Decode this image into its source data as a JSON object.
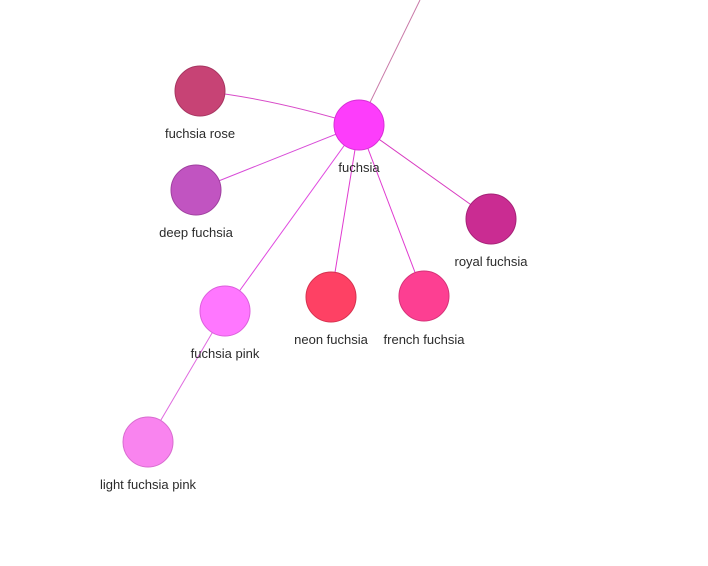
{
  "graph": {
    "nodes": [
      {
        "id": "fuchsia",
        "label": "fuchsia",
        "color": "#fd3dfb",
        "stroke": "#d82fd6"
      },
      {
        "id": "fuchsia-rose",
        "label": "fuchsia rose",
        "color": "#c74375",
        "stroke": "#a63560"
      },
      {
        "id": "deep-fuchsia",
        "label": "deep fuchsia",
        "color": "#c154c1",
        "stroke": "#9f409f"
      },
      {
        "id": "royal-fuchsia",
        "label": "royal fuchsia",
        "color": "#ca2c92",
        "stroke": "#a52277"
      },
      {
        "id": "neon-fuchsia",
        "label": "neon fuchsia",
        "color": "#fe4164",
        "stroke": "#d6324f"
      },
      {
        "id": "french-fuchsia",
        "label": "french fuchsia",
        "color": "#fd3f92",
        "stroke": "#d53278"
      },
      {
        "id": "fuchsia-pink",
        "label": "fuchsia pink",
        "color": "#ff77ff",
        "stroke": "#dc5fdc"
      },
      {
        "id": "light-fuchsia-pink",
        "label": "light fuchsia pink",
        "color": "#f984ef",
        "stroke": "#d86ccf"
      }
    ],
    "edges": [
      {
        "from": "fuchsia",
        "to": "offscreen",
        "color": "#c97aa8"
      },
      {
        "from": "fuchsia",
        "to": "fuchsia-rose",
        "color": "#d84bc8"
      },
      {
        "from": "fuchsia",
        "to": "deep-fuchsia",
        "color": "#d84bd8"
      },
      {
        "from": "fuchsia",
        "to": "royal-fuchsia",
        "color": "#d83bc0"
      },
      {
        "from": "fuchsia",
        "to": "neon-fuchsia",
        "color": "#e03ad0"
      },
      {
        "from": "fuchsia",
        "to": "french-fuchsia",
        "color": "#e03ad0"
      },
      {
        "from": "fuchsia",
        "to": "fuchsia-pink",
        "color": "#e04ae0"
      },
      {
        "from": "fuchsia-pink",
        "to": "light-fuchsia-pink",
        "color": "#e06ae0"
      }
    ]
  }
}
